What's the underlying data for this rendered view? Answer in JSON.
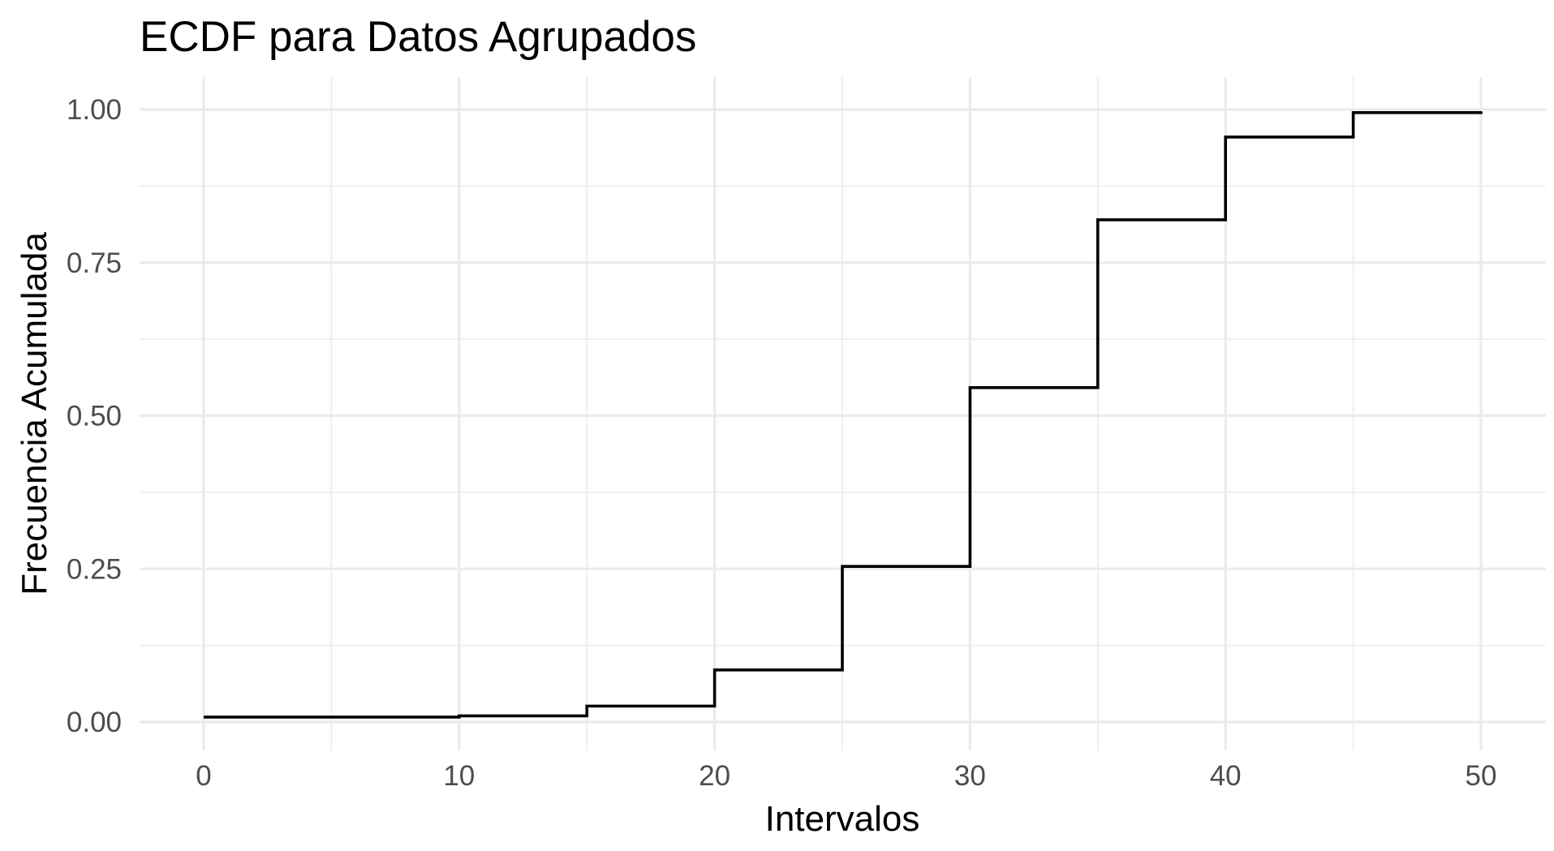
{
  "chart_data": {
    "type": "line",
    "subtype": "step",
    "title": "ECDF para Datos Agrupados",
    "xlabel": "Intervalos",
    "ylabel": "Frecuencia Acumulada",
    "xlim": [
      0,
      50
    ],
    "ylim": [
      0,
      1
    ],
    "x_ticks": [
      0,
      10,
      20,
      30,
      40,
      50
    ],
    "x_tick_labels": [
      "0",
      "10",
      "20",
      "30",
      "40",
      "50"
    ],
    "y_ticks": [
      0,
      0.25,
      0.5,
      0.75,
      1
    ],
    "y_tick_labels": [
      "0.00",
      "0.25",
      "0.50",
      "0.75",
      "1.00"
    ],
    "grid": true,
    "legend": "none",
    "colors": {
      "line": "#000000",
      "grid": "#ebebeb",
      "tick_text": "#4d4d4d",
      "background": "#ffffff"
    },
    "series": [
      {
        "x": [
          0,
          10,
          15,
          20,
          25,
          30,
          35,
          40,
          45,
          50
        ],
        "values": [
          0.008,
          0.01,
          0.026,
          0.085,
          0.254,
          0.546,
          0.82,
          0.955,
          0.995,
          0.997
        ]
      }
    ]
  }
}
